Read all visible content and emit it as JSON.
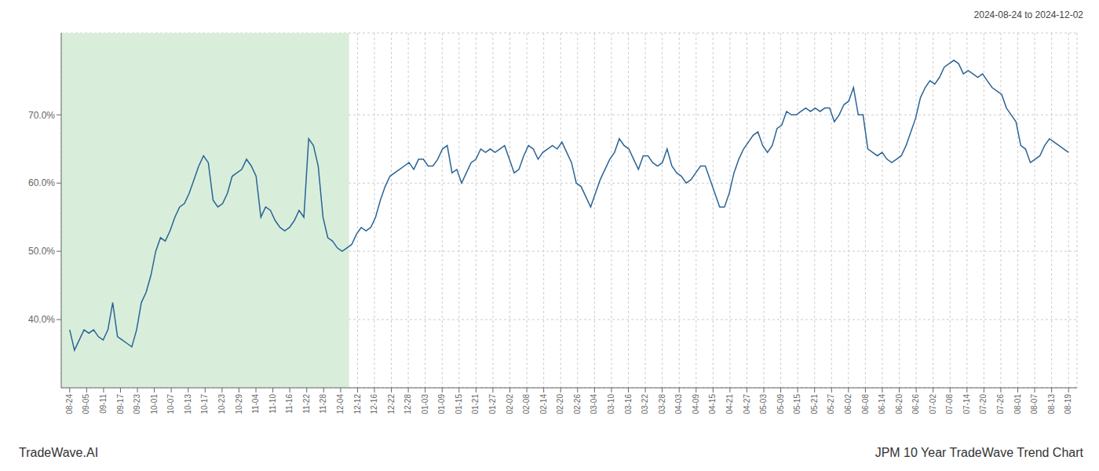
{
  "chart_data": {
    "type": "line",
    "title": "JPM 10 Year TradeWave Trend Chart",
    "subtitle": "2024-08-24 to 2024-12-02",
    "annotations": [
      "TradeWave.AI"
    ],
    "color": "#2a6496",
    "grid": true,
    "shaded": {
      "range": [
        -0.5,
        16.5
      ],
      "color": "#d8eedb"
    },
    "xlim": [
      -0.5,
      59.5
    ],
    "xticks": [
      {
        "value": 0,
        "label": "08-24"
      },
      {
        "value": 1,
        "label": "09-05"
      },
      {
        "value": 2,
        "label": "09-11"
      },
      {
        "value": 3,
        "label": "09-17"
      },
      {
        "value": 4,
        "label": "09-23"
      },
      {
        "value": 5,
        "label": "10-01"
      },
      {
        "value": 6,
        "label": "10-07"
      },
      {
        "value": 7,
        "label": "10-13"
      },
      {
        "value": 8,
        "label": "10-17"
      },
      {
        "value": 9,
        "label": "10-23"
      },
      {
        "value": 10,
        "label": "10-29"
      },
      {
        "value": 11,
        "label": "11-04"
      },
      {
        "value": 12,
        "label": "11-10"
      },
      {
        "value": 13,
        "label": "11-16"
      },
      {
        "value": 14,
        "label": "11-22"
      },
      {
        "value": 15,
        "label": "11-28"
      },
      {
        "value": 16,
        "label": "12-04"
      },
      {
        "value": 17,
        "label": "12-12"
      },
      {
        "value": 18,
        "label": "12-16"
      },
      {
        "value": 19,
        "label": "12-22"
      },
      {
        "value": 20,
        "label": "12-28"
      },
      {
        "value": 21,
        "label": "01-03"
      },
      {
        "value": 22,
        "label": "01-09"
      },
      {
        "value": 23,
        "label": "01-15"
      },
      {
        "value": 24,
        "label": "01-21"
      },
      {
        "value": 25,
        "label": "01-27"
      },
      {
        "value": 26,
        "label": "02-02"
      },
      {
        "value": 27,
        "label": "02-08"
      },
      {
        "value": 28,
        "label": "02-14"
      },
      {
        "value": 29,
        "label": "02-20"
      },
      {
        "value": 30,
        "label": "02-26"
      },
      {
        "value": 31,
        "label": "03-04"
      },
      {
        "value": 32,
        "label": "03-10"
      },
      {
        "value": 33,
        "label": "03-16"
      },
      {
        "value": 34,
        "label": "03-22"
      },
      {
        "value": 35,
        "label": "03-28"
      },
      {
        "value": 36,
        "label": "04-03"
      },
      {
        "value": 37,
        "label": "04-09"
      },
      {
        "value": 38,
        "label": "04-15"
      },
      {
        "value": 39,
        "label": "04-21"
      },
      {
        "value": 40,
        "label": "04-27"
      },
      {
        "value": 41,
        "label": "05-03"
      },
      {
        "value": 42,
        "label": "05-09"
      },
      {
        "value": 43,
        "label": "05-15"
      },
      {
        "value": 44,
        "label": "05-21"
      },
      {
        "value": 45,
        "label": "05-27"
      },
      {
        "value": 46,
        "label": "06-02"
      },
      {
        "value": 47,
        "label": "06-08"
      },
      {
        "value": 48,
        "label": "06-14"
      },
      {
        "value": 49,
        "label": "06-20"
      },
      {
        "value": 50,
        "label": "06-26"
      },
      {
        "value": 51,
        "label": "07-02"
      },
      {
        "value": 52,
        "label": "07-08"
      },
      {
        "value": 53,
        "label": "07-14"
      },
      {
        "value": 54,
        "label": "07-20"
      },
      {
        "value": 55,
        "label": "07-26"
      },
      {
        "value": 56,
        "label": "08-01"
      },
      {
        "value": 57,
        "label": "08-07"
      },
      {
        "value": 58,
        "label": "08-13"
      },
      {
        "value": 59,
        "label": "08-19"
      }
    ],
    "ylim": [
      30,
      82
    ],
    "yticks": [
      {
        "value": 40.0,
        "label": "40.0%"
      },
      {
        "value": 50.0,
        "label": "50.0%"
      },
      {
        "value": 60.0,
        "label": "60.0%"
      },
      {
        "value": 70.0,
        "label": "70.0%"
      }
    ],
    "x": [
      0,
      0.282,
      0.565,
      0.847,
      1.129,
      1.411,
      1.694,
      1.976,
      2.258,
      2.541,
      2.823,
      3.105,
      3.388,
      3.67,
      3.952,
      4.234,
      4.517,
      4.799,
      5.081,
      5.364,
      5.646,
      5.928,
      6.211,
      6.493,
      6.775,
      7.057,
      7.34,
      7.622,
      7.904,
      8.187,
      8.469,
      8.751,
      9.033,
      9.316,
      9.598,
      9.88,
      10.163,
      10.445,
      10.727,
      11.01,
      11.292,
      11.574,
      11.856,
      12.139,
      12.421,
      12.703,
      12.986,
      13.268,
      13.55,
      13.833,
      14.115,
      14.397,
      14.679,
      14.962,
      15.244,
      15.526,
      15.809,
      16.091,
      16.373,
      16.656,
      16.938,
      17.22,
      17.502,
      17.785,
      18.067,
      18.349,
      18.632,
      18.914,
      19.196,
      19.478,
      19.761,
      20.043,
      20.325,
      20.608,
      20.89,
      21.172,
      21.455,
      21.737,
      22.019,
      22.301,
      22.584,
      22.866,
      23.148,
      23.431,
      23.713,
      23.995,
      24.278,
      24.56,
      24.842,
      25.124,
      25.407,
      25.689,
      25.971,
      26.254,
      26.536,
      26.818,
      27.1,
      27.383,
      27.665,
      27.947,
      28.23,
      28.512,
      28.794,
      29.077,
      29.359,
      29.641,
      29.923,
      30.206,
      30.488,
      30.77,
      31.053,
      31.335,
      31.617,
      31.9,
      32.182,
      32.464,
      32.746,
      33.029,
      33.311,
      33.593,
      33.876,
      34.158,
      34.44,
      34.722,
      35.005,
      35.287,
      35.569,
      35.852,
      36.134,
      36.416,
      36.699,
      36.981,
      37.263,
      37.545,
      37.828,
      38.11,
      38.392,
      38.675,
      38.957,
      39.239,
      39.522,
      39.804,
      40.086,
      40.368,
      40.651,
      40.933,
      41.215,
      41.498,
      41.78,
      42.062,
      42.344,
      42.627,
      42.909,
      43.191,
      43.474,
      43.756,
      44.038,
      44.321,
      44.603,
      44.885,
      45.167,
      45.45,
      45.732,
      46.014,
      46.297,
      46.579,
      46.861,
      47.144,
      47.426,
      47.708,
      47.99,
      48.273,
      48.555,
      48.837,
      49.12,
      49.402,
      49.684,
      49.967,
      50.249,
      50.531,
      50.813,
      51.096,
      51.378,
      51.66,
      51.943,
      52.225,
      52.507,
      52.789,
      53.072,
      53.354,
      53.636,
      53.919,
      54.201,
      54.483,
      54.766,
      55.048,
      55.33,
      55.612,
      55.895,
      56.177,
      56.459,
      56.742,
      57.024,
      57.306,
      57.589,
      57.871,
      58.153,
      58.435,
      58.718,
      59
    ],
    "values": [
      38.5,
      35.5,
      37.0,
      38.5,
      38.0,
      38.5,
      37.5,
      37.0,
      38.5,
      42.5,
      37.5,
      37.0,
      36.5,
      36.0,
      38.5,
      42.5,
      44.0,
      46.5,
      50.0,
      52.0,
      51.5,
      53.0,
      55.0,
      56.5,
      57.0,
      58.5,
      60.5,
      62.5,
      64.0,
      63.0,
      57.5,
      56.5,
      57.0,
      58.5,
      61.0,
      61.5,
      62.0,
      63.5,
      62.5,
      61.0,
      55.0,
      56.5,
      56.0,
      54.5,
      53.5,
      53.0,
      53.5,
      54.5,
      56.0,
      55.0,
      66.5,
      65.5,
      62.5,
      55.0,
      52.0,
      51.5,
      50.5,
      50.0,
      50.5,
      51.0,
      52.5,
      53.5,
      53.0,
      53.5,
      55.0,
      57.5,
      59.5,
      61.0,
      61.5,
      62.0,
      62.5,
      63.0,
      62.0,
      63.5,
      63.5,
      62.5,
      62.5,
      63.5,
      65.0,
      65.5,
      61.5,
      62.0,
      60.0,
      61.5,
      63.0,
      63.5,
      65.0,
      64.5,
      65.0,
      64.5,
      65.0,
      65.5,
      63.5,
      61.5,
      62.0,
      64.0,
      65.5,
      65.0,
      63.5,
      64.5,
      65.0,
      65.5,
      65.0,
      66.0,
      64.5,
      63.0,
      60.0,
      59.5,
      58.0,
      56.5,
      58.5,
      60.5,
      62.0,
      63.5,
      64.5,
      66.5,
      65.5,
      65.0,
      63.5,
      62.0,
      64.0,
      64.0,
      63.0,
      62.5,
      63.0,
      65.0,
      62.5,
      61.5,
      61.0,
      60.0,
      60.5,
      61.5,
      62.5,
      62.5,
      60.5,
      58.5,
      56.5,
      56.5,
      58.5,
      61.5,
      63.5,
      65.0,
      66.0,
      67.0,
      67.5,
      65.5,
      64.5,
      65.5,
      68.0,
      68.5,
      70.5,
      70.0,
      70.0,
      70.5,
      71.0,
      70.5,
      71.0,
      70.5,
      71.0,
      71.0,
      69.0,
      70.0,
      71.5,
      72.0,
      74.0,
      70.0,
      70.0,
      65.0,
      64.5,
      64.0,
      64.5,
      63.5,
      63.0,
      63.5,
      64.0,
      65.5,
      67.5,
      69.5,
      72.5,
      74.0,
      75.0,
      74.5,
      75.5,
      77.0,
      77.5,
      78.0,
      77.5,
      76.0,
      76.5,
      76.0,
      75.5,
      76.0,
      75.0,
      74.0,
      73.5,
      73.0,
      71.0,
      70.0,
      69.0,
      65.5,
      65.0,
      63.0,
      63.5,
      64.0,
      65.5,
      66.5,
      66.0,
      65.5,
      65.0,
      64.5
    ]
  }
}
